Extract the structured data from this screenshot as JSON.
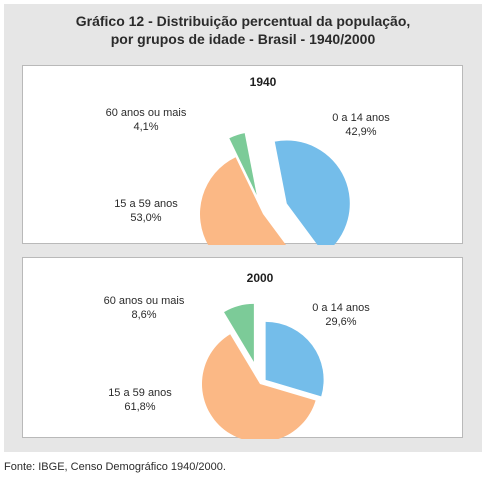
{
  "title_line1": "Gráfico 12 - Distribuição percentual da população,",
  "title_line2": "por grupos de idade - Brasil - 1940/2000",
  "source": "Fonte: IBGE, Censo Demográfico 1940/2000.",
  "colors": {
    "0 a 14 anos": "#74bdea",
    "15 a 59 anos": "#fbb885",
    "60 anos ou mais": "#7ccb98"
  },
  "chart_data": [
    {
      "type": "pie",
      "title": "1940",
      "slices": [
        {
          "label": "0 a 14 anos",
          "value": 42.9,
          "value_label": "42,9%"
        },
        {
          "label": "15 a 59 anos",
          "value": 53.0,
          "value_label": "53,0%"
        },
        {
          "label": "60 anos ou mais",
          "value": 4.1,
          "value_label": "4,1%"
        }
      ]
    },
    {
      "type": "pie",
      "title": "2000",
      "slices": [
        {
          "label": "0 a 14 anos",
          "value": 29.6,
          "value_label": "29,6%"
        },
        {
          "label": "15 a 59 anos",
          "value": 61.8,
          "value_label": "61,8%"
        },
        {
          "label": "60 anos ou mais",
          "value": 8.6,
          "value_label": "8,6%"
        }
      ]
    }
  ]
}
